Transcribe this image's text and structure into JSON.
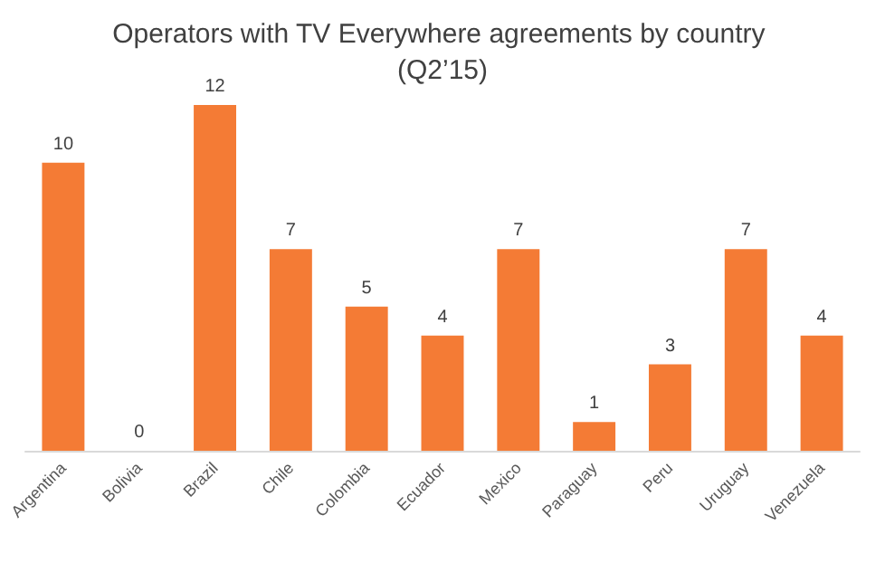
{
  "chart_data": {
    "type": "bar",
    "title": "Operators with TV Everywhere agreements by country (Q2’15)",
    "categories": [
      "Argentina",
      "Bolivia",
      "Brazil",
      "Chile",
      "Colombia",
      "Ecuador",
      "Mexico",
      "Paraguay",
      "Peru",
      "Uruguay",
      "Venezuela"
    ],
    "values": [
      10,
      0,
      12,
      7,
      5,
      4,
      7,
      1,
      3,
      7,
      4
    ],
    "color": "#f47b35",
    "data_labels": true
  }
}
